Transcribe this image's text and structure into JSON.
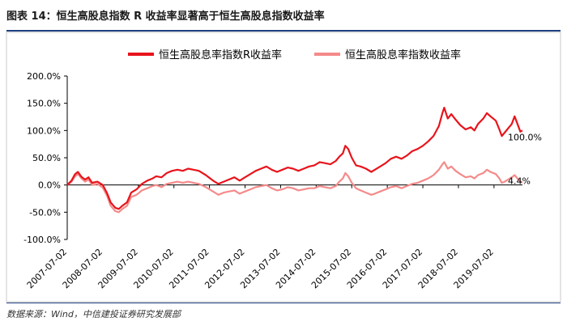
{
  "figure": {
    "title": "图表 14：恒生高股息指数 R 收益率显著高于恒生高股息指数收益率",
    "source": "数据来源：Wind，中信建投证券研究发展部"
  },
  "chart_data": {
    "type": "line",
    "title": "",
    "xlabel": "",
    "ylabel": "",
    "ylim": [
      -100,
      200
    ],
    "yticks": [
      "200.0%",
      "150.0%",
      "100.0%",
      "50.0%",
      "0.0%",
      "-50.0%",
      "-100.0%"
    ],
    "xticks": [
      "2007-07-02",
      "2008-07-02",
      "2009-07-02",
      "2010-07-02",
      "2011-07-02",
      "2012-07-02",
      "2013-07-02",
      "2014-07-02",
      "2015-07-02",
      "2016-07-02",
      "2017-07-02",
      "2018-07-02",
      "2019-07-02"
    ],
    "legend_position": "top",
    "grid": false,
    "x_unit": "year",
    "series": [
      {
        "name": "恒生高股息率指数R收益率",
        "color": "#e8141c",
        "end_label": "100.0%",
        "points": [
          [
            2007.5,
            0
          ],
          [
            2007.62,
            8
          ],
          [
            2007.72,
            20
          ],
          [
            2007.8,
            24
          ],
          [
            2007.9,
            15
          ],
          [
            2008.0,
            10
          ],
          [
            2008.1,
            14
          ],
          [
            2008.2,
            4
          ],
          [
            2008.35,
            6
          ],
          [
            2008.5,
            0
          ],
          [
            2008.62,
            -15
          ],
          [
            2008.72,
            -32
          ],
          [
            2008.85,
            -42
          ],
          [
            2008.95,
            -44
          ],
          [
            2009.05,
            -38
          ],
          [
            2009.18,
            -32
          ],
          [
            2009.3,
            -14
          ],
          [
            2009.45,
            -8
          ],
          [
            2009.6,
            2
          ],
          [
            2009.75,
            8
          ],
          [
            2009.9,
            12
          ],
          [
            2010.0,
            16
          ],
          [
            2010.15,
            14
          ],
          [
            2010.3,
            22
          ],
          [
            2010.45,
            26
          ],
          [
            2010.6,
            28
          ],
          [
            2010.75,
            26
          ],
          [
            2010.9,
            30
          ],
          [
            2011.05,
            28
          ],
          [
            2011.2,
            26
          ],
          [
            2011.4,
            18
          ],
          [
            2011.6,
            8
          ],
          [
            2011.75,
            2
          ],
          [
            2011.9,
            6
          ],
          [
            2012.05,
            10
          ],
          [
            2012.2,
            14
          ],
          [
            2012.35,
            8
          ],
          [
            2012.5,
            14
          ],
          [
            2012.65,
            20
          ],
          [
            2012.8,
            26
          ],
          [
            2012.95,
            30
          ],
          [
            2013.1,
            34
          ],
          [
            2013.25,
            28
          ],
          [
            2013.4,
            24
          ],
          [
            2013.55,
            28
          ],
          [
            2013.7,
            32
          ],
          [
            2013.85,
            30
          ],
          [
            2014.0,
            26
          ],
          [
            2014.15,
            30
          ],
          [
            2014.3,
            34
          ],
          [
            2014.45,
            36
          ],
          [
            2014.6,
            42
          ],
          [
            2014.75,
            40
          ],
          [
            2014.9,
            38
          ],
          [
            2015.05,
            44
          ],
          [
            2015.15,
            52
          ],
          [
            2015.25,
            58
          ],
          [
            2015.32,
            72
          ],
          [
            2015.4,
            66
          ],
          [
            2015.5,
            50
          ],
          [
            2015.62,
            36
          ],
          [
            2015.75,
            34
          ],
          [
            2015.9,
            30
          ],
          [
            2016.05,
            24
          ],
          [
            2016.15,
            28
          ],
          [
            2016.3,
            34
          ],
          [
            2016.45,
            40
          ],
          [
            2016.6,
            48
          ],
          [
            2016.75,
            52
          ],
          [
            2016.9,
            48
          ],
          [
            2017.05,
            54
          ],
          [
            2017.2,
            62
          ],
          [
            2017.35,
            66
          ],
          [
            2017.5,
            72
          ],
          [
            2017.65,
            80
          ],
          [
            2017.8,
            90
          ],
          [
            2017.95,
            108
          ],
          [
            2018.05,
            132
          ],
          [
            2018.1,
            142
          ],
          [
            2018.2,
            122
          ],
          [
            2018.3,
            130
          ],
          [
            2018.42,
            120
          ],
          [
            2018.55,
            110
          ],
          [
            2018.7,
            102
          ],
          [
            2018.85,
            106
          ],
          [
            2018.95,
            100
          ],
          [
            2019.05,
            112
          ],
          [
            2019.2,
            122
          ],
          [
            2019.3,
            132
          ],
          [
            2019.4,
            126
          ],
          [
            2019.55,
            118
          ],
          [
            2019.65,
            102
          ],
          [
            2019.72,
            90
          ],
          [
            2019.8,
            96
          ],
          [
            2019.9,
            104
          ],
          [
            2020.0,
            112
          ],
          [
            2020.08,
            126
          ],
          [
            2020.16,
            112
          ],
          [
            2020.24,
            98
          ],
          [
            2020.3,
            100
          ]
        ]
      },
      {
        "name": "恒生高股息率指数收益率",
        "color": "#f58a8a",
        "end_label": "4.4%",
        "points": [
          [
            2007.5,
            0
          ],
          [
            2007.62,
            6
          ],
          [
            2007.72,
            16
          ],
          [
            2007.8,
            20
          ],
          [
            2007.9,
            12
          ],
          [
            2008.0,
            6
          ],
          [
            2008.1,
            10
          ],
          [
            2008.2,
            0
          ],
          [
            2008.35,
            2
          ],
          [
            2008.5,
            -5
          ],
          [
            2008.62,
            -20
          ],
          [
            2008.72,
            -38
          ],
          [
            2008.85,
            -48
          ],
          [
            2008.95,
            -50
          ],
          [
            2009.05,
            -44
          ],
          [
            2009.18,
            -38
          ],
          [
            2009.3,
            -22
          ],
          [
            2009.45,
            -18
          ],
          [
            2009.6,
            -10
          ],
          [
            2009.75,
            -6
          ],
          [
            2009.9,
            -2
          ],
          [
            2010.0,
            0
          ],
          [
            2010.15,
            -4
          ],
          [
            2010.3,
            2
          ],
          [
            2010.45,
            4
          ],
          [
            2010.6,
            6
          ],
          [
            2010.75,
            4
          ],
          [
            2010.9,
            6
          ],
          [
            2011.05,
            4
          ],
          [
            2011.2,
            2
          ],
          [
            2011.4,
            -4
          ],
          [
            2011.6,
            -12
          ],
          [
            2011.75,
            -18
          ],
          [
            2011.9,
            -14
          ],
          [
            2012.05,
            -12
          ],
          [
            2012.2,
            -10
          ],
          [
            2012.35,
            -16
          ],
          [
            2012.5,
            -12
          ],
          [
            2012.65,
            -8
          ],
          [
            2012.8,
            -4
          ],
          [
            2012.95,
            -2
          ],
          [
            2013.1,
            0
          ],
          [
            2013.25,
            -6
          ],
          [
            2013.4,
            -10
          ],
          [
            2013.55,
            -8
          ],
          [
            2013.7,
            -4
          ],
          [
            2013.85,
            -6
          ],
          [
            2014.0,
            -10
          ],
          [
            2014.15,
            -8
          ],
          [
            2014.3,
            -6
          ],
          [
            2014.45,
            -6
          ],
          [
            2014.6,
            -2
          ],
          [
            2014.75,
            -4
          ],
          [
            2014.9,
            -6
          ],
          [
            2015.05,
            -2
          ],
          [
            2015.15,
            6
          ],
          [
            2015.25,
            12
          ],
          [
            2015.32,
            22
          ],
          [
            2015.4,
            16
          ],
          [
            2015.5,
            4
          ],
          [
            2015.62,
            -6
          ],
          [
            2015.75,
            -10
          ],
          [
            2015.9,
            -14
          ],
          [
            2016.05,
            -18
          ],
          [
            2016.15,
            -16
          ],
          [
            2016.3,
            -12
          ],
          [
            2016.45,
            -8
          ],
          [
            2016.6,
            -4
          ],
          [
            2016.75,
            -2
          ],
          [
            2016.9,
            -6
          ],
          [
            2017.05,
            -2
          ],
          [
            2017.2,
            2
          ],
          [
            2017.35,
            4
          ],
          [
            2017.5,
            8
          ],
          [
            2017.65,
            12
          ],
          [
            2017.8,
            18
          ],
          [
            2017.95,
            28
          ],
          [
            2018.05,
            38
          ],
          [
            2018.1,
            42
          ],
          [
            2018.2,
            30
          ],
          [
            2018.3,
            34
          ],
          [
            2018.42,
            26
          ],
          [
            2018.55,
            20
          ],
          [
            2018.7,
            14
          ],
          [
            2018.85,
            16
          ],
          [
            2018.95,
            12
          ],
          [
            2019.05,
            18
          ],
          [
            2019.2,
            22
          ],
          [
            2019.3,
            28
          ],
          [
            2019.4,
            24
          ],
          [
            2019.55,
            20
          ],
          [
            2019.65,
            12
          ],
          [
            2019.72,
            4
          ],
          [
            2019.8,
            6
          ],
          [
            2019.9,
            10
          ],
          [
            2020.0,
            14
          ],
          [
            2020.08,
            18
          ],
          [
            2020.16,
            12
          ],
          [
            2020.24,
            6
          ],
          [
            2020.3,
            4.4
          ]
        ]
      }
    ]
  }
}
